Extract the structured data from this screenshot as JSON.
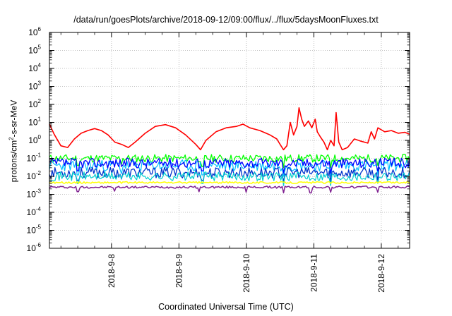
{
  "chart_data": {
    "type": "line",
    "title": "/data/run/goesPlots/archive/2018-09-12/09:00/flux/../flux/5daysMoonFluxes.txt",
    "xlabel": "Coordinated Universal Time (UTC)",
    "ylabel_parts": [
      "protons/cm",
      "2",
      "-s-sr-MeV"
    ],
    "yscale": "log",
    "ylim_exp": [
      -6,
      6
    ],
    "y_ticks_base": "10",
    "y_ticks_exp": [
      "-6",
      "-5",
      "-4",
      "-3",
      "-2",
      "-1",
      "0",
      "1",
      "2",
      "3",
      "4",
      "5",
      "6"
    ],
    "xlim_days": [
      7.08,
      12.42
    ],
    "x_ticks": [
      {
        "label": "2018-9-8",
        "day": 8
      },
      {
        "label": "2018-9-9",
        "day": 9
      },
      {
        "label": "2018-9-10",
        "day": 10
      },
      {
        "label": "2018-9-11",
        "day": 11
      },
      {
        "label": "2018-9-12",
        "day": 12
      }
    ],
    "grid": true,
    "series": [
      {
        "color": "#ff0000",
        "width": 1.6,
        "points": [
          [
            7.08,
            8
          ],
          [
            7.15,
            2.2
          ],
          [
            7.25,
            0.5
          ],
          [
            7.35,
            0.4
          ],
          [
            7.45,
            1.2
          ],
          [
            7.55,
            2.5
          ],
          [
            7.65,
            3.5
          ],
          [
            7.75,
            4.5
          ],
          [
            7.85,
            3.5
          ],
          [
            7.95,
            2
          ],
          [
            8.05,
            0.8
          ],
          [
            8.15,
            0.6
          ],
          [
            8.25,
            0.4
          ],
          [
            8.35,
            0.8
          ],
          [
            8.5,
            2.5
          ],
          [
            8.65,
            6
          ],
          [
            8.8,
            7.5
          ],
          [
            8.95,
            5
          ],
          [
            9.1,
            2
          ],
          [
            9.25,
            0.6
          ],
          [
            9.32,
            0.3
          ],
          [
            9.4,
            1
          ],
          [
            9.55,
            3
          ],
          [
            9.7,
            5
          ],
          [
            9.85,
            6
          ],
          [
            9.95,
            8
          ],
          [
            10.05,
            5
          ],
          [
            10.2,
            3.5
          ],
          [
            10.35,
            2
          ],
          [
            10.45,
            1.2
          ],
          [
            10.5,
            0.6
          ],
          [
            10.55,
            0.3
          ],
          [
            10.6,
            0.5
          ],
          [
            10.65,
            10
          ],
          [
            10.7,
            2
          ],
          [
            10.75,
            6
          ],
          [
            10.78,
            65
          ],
          [
            10.82,
            15
          ],
          [
            10.86,
            6
          ],
          [
            10.92,
            12
          ],
          [
            10.97,
            5
          ],
          [
            11.02,
            15
          ],
          [
            11.05,
            3
          ],
          [
            11.1,
            1.5
          ],
          [
            11.15,
            0.8
          ],
          [
            11.2,
            0.3
          ],
          [
            11.25,
            1
          ],
          [
            11.3,
            0.5
          ],
          [
            11.33,
            35
          ],
          [
            11.37,
            0.8
          ],
          [
            11.42,
            0.3
          ],
          [
            11.5,
            0.4
          ],
          [
            11.6,
            1.2
          ],
          [
            11.7,
            0.9
          ],
          [
            11.8,
            0.7
          ],
          [
            11.85,
            3
          ],
          [
            11.9,
            1.2
          ],
          [
            11.95,
            5
          ],
          [
            12.05,
            3
          ],
          [
            12.15,
            3.5
          ],
          [
            12.25,
            2.5
          ],
          [
            12.35,
            2.8
          ],
          [
            12.42,
            2.2
          ]
        ]
      },
      {
        "color": "#00ff00",
        "width": 1.3,
        "base": 0.1,
        "amp": 0.22,
        "seed": 11,
        "dips": [
          [
            7.5,
            0.04
          ],
          [
            8.15,
            0.045
          ],
          [
            9.35,
            0.035
          ],
          [
            10.55,
            0.03
          ],
          [
            11.25,
            0.03
          ],
          [
            11.95,
            0.04
          ]
        ]
      },
      {
        "color": "#00bfff",
        "width": 1.2,
        "base": 0.04,
        "amp": 0.32,
        "seed": 23,
        "dips": [
          [
            7.5,
            0.012
          ],
          [
            8.15,
            0.014
          ],
          [
            9.35,
            0.012
          ],
          [
            10.55,
            0.01
          ],
          [
            11.25,
            0.01
          ],
          [
            11.95,
            0.012
          ]
        ]
      },
      {
        "color": "#0000ff",
        "width": 1.3,
        "base": 0.055,
        "amp": 0.28,
        "seed": 37,
        "dips": [
          [
            7.5,
            0.02
          ],
          [
            9.35,
            0.02
          ],
          [
            10.55,
            0.015
          ],
          [
            11.25,
            0.015
          ],
          [
            11.95,
            0.02
          ]
        ]
      },
      {
        "color": "#0033cc",
        "width": 1.3,
        "base": 0.016,
        "amp": 0.3,
        "seed": 53,
        "dips": [
          [
            7.5,
            0.006
          ],
          [
            8.15,
            0.007
          ],
          [
            9.35,
            0.006
          ],
          [
            10.55,
            0.005
          ],
          [
            11.25,
            0.005
          ],
          [
            11.95,
            0.006
          ]
        ]
      },
      {
        "color": "#00d0d0",
        "width": 1.2,
        "base": 0.01,
        "amp": 0.25,
        "seed": 71,
        "dips": [
          [
            7.5,
            0.004
          ],
          [
            9.35,
            0.004
          ],
          [
            10.55,
            0.003
          ],
          [
            11.25,
            0.003
          ],
          [
            11.95,
            0.004
          ]
        ]
      },
      {
        "color": "#ffff00",
        "width": 1.5,
        "base": 0.0045,
        "amp": 0.05,
        "seed": 89,
        "dips": []
      },
      {
        "color": "#7f2090",
        "width": 1.5,
        "base": 0.0025,
        "amp": 0.06,
        "seed": 97,
        "dips": [
          [
            7.5,
            0.0014
          ],
          [
            8.05,
            0.0015
          ],
          [
            9.3,
            0.0014
          ],
          [
            10.0,
            0.0013
          ],
          [
            10.55,
            0.0012
          ],
          [
            10.95,
            0.0012
          ],
          [
            11.25,
            0.0013
          ],
          [
            11.95,
            0.0013
          ]
        ]
      }
    ]
  }
}
